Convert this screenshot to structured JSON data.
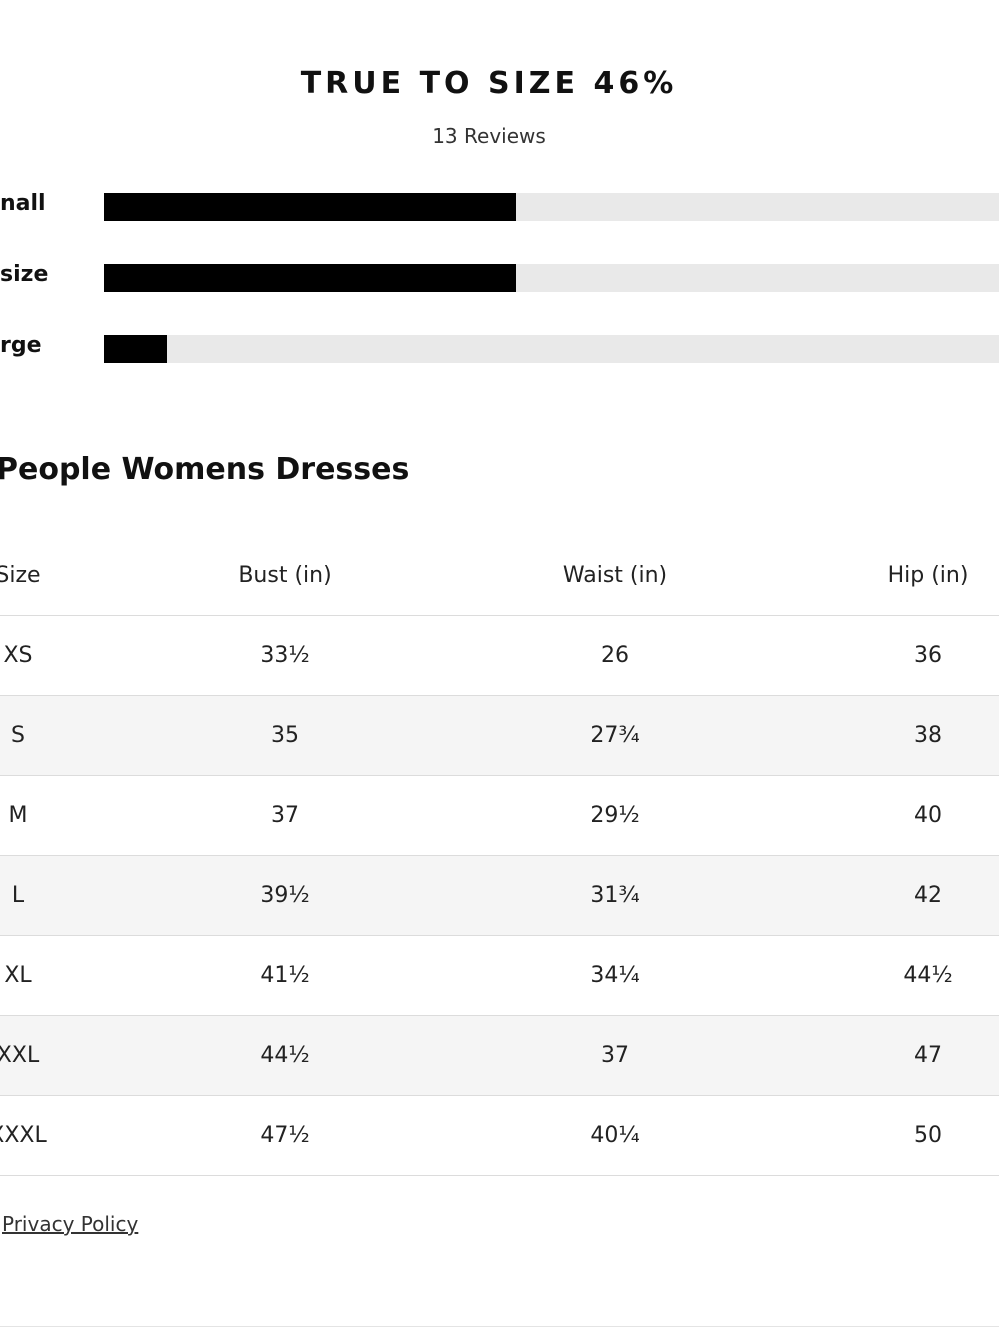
{
  "fit": {
    "title": "TRUE TO SIZE 46%",
    "subtitle": "13 Reviews",
    "range": [
      0,
      100
    ],
    "bars": [
      {
        "label": "nall",
        "value": 46
      },
      {
        "label": "size",
        "value": 46
      },
      {
        "label": "rge",
        "value": 7
      }
    ]
  },
  "table": {
    "title": "People Womens Dresses",
    "columns": [
      "Size",
      "Bust (in)",
      "Waist (in)",
      "Hip (in)"
    ],
    "rows": [
      [
        "XS",
        "33½",
        "26",
        "36"
      ],
      [
        "S",
        "35",
        "27¾",
        "38"
      ],
      [
        "M",
        "37",
        "29½",
        "40"
      ],
      [
        "L",
        "39½",
        "31¾",
        "42"
      ],
      [
        "XL",
        "41½",
        "34¼",
        "44½"
      ],
      [
        "XXL",
        "44½",
        "37",
        "47"
      ],
      [
        "XXXL",
        "47½",
        "40¼",
        "50"
      ]
    ]
  },
  "footer": {
    "link": "Privacy Policy"
  }
}
